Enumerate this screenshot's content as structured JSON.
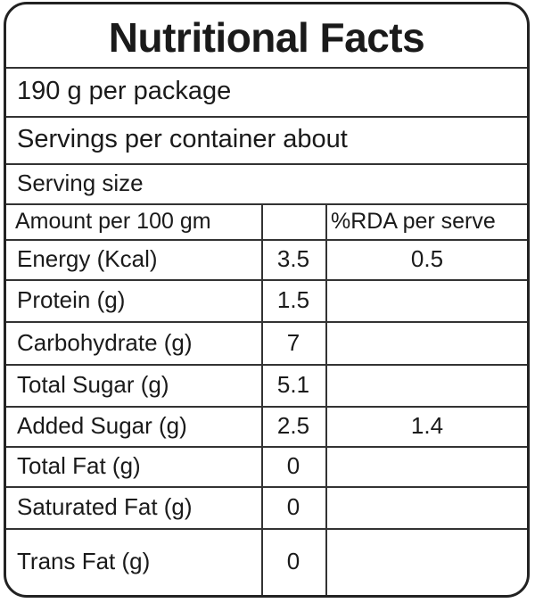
{
  "header": {
    "title": "Nutritional Facts"
  },
  "info": [
    "190 g per package",
    "Servings per container about",
    "Serving size"
  ],
  "table": {
    "header": {
      "label": "Amount per 100 gm",
      "rda": "%RDA per serve"
    },
    "rows": [
      {
        "nutrient": "Energy (Kcal)",
        "amount": "3.5",
        "rda": "0.5"
      },
      {
        "nutrient": "Protein (g)",
        "amount": "1.5"
      },
      {
        "nutrient": "Carbohydrate (g)",
        "amount": "7"
      },
      {
        "nutrient": "Total Sugar (g)",
        "amount": "5.1"
      },
      {
        "nutrient": "Added Sugar (g)",
        "amount": "2.5",
        "rda": "1.4"
      },
      {
        "nutrient": "Total Fat (g)",
        "amount": "0"
      },
      {
        "nutrient": "Saturated Fat (g)",
        "amount": "0"
      },
      {
        "nutrient": "Trans Fat (g)",
        "amount": "0"
      }
    ]
  }
}
